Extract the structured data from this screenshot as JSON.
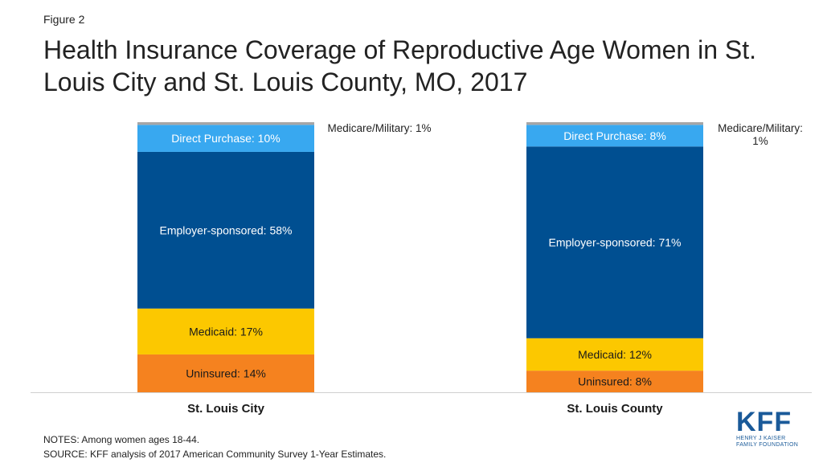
{
  "figure_label": "Figure 2",
  "notes": {
    "line1": "NOTES: Among women ages 18-44.",
    "line2": "SOURCE: KFF analysis of 2017 American Community Survey 1-Year Estimates."
  },
  "logo": {
    "mark": "KFF",
    "line1": "HENRY J KAISER",
    "line2": "FAMILY FOUNDATION"
  },
  "chart_data": {
    "type": "bar",
    "stacked": true,
    "title": "Health Insurance Coverage of Reproductive Age Women in St. Louis City and St. Louis County, MO, 2017",
    "categories": [
      "St. Louis City",
      "St. Louis County"
    ],
    "ylim": [
      0,
      100
    ],
    "grid": false,
    "series": [
      {
        "name": "Uninsured",
        "values": [
          14,
          8
        ],
        "labels": [
          "Uninsured: 14%",
          "Uninsured: 8%"
        ],
        "color": "#f5821f",
        "label_outside": false
      },
      {
        "name": "Medicaid",
        "values": [
          17,
          12
        ],
        "labels": [
          "Medicaid: 17%",
          "Medicaid: 12%"
        ],
        "color": "#fcc800",
        "label_outside": false
      },
      {
        "name": "Employer-sponsored",
        "values": [
          58,
          71
        ],
        "labels": [
          "Employer-sponsored: 58%",
          "Employer-sponsored: 71%"
        ],
        "color": "#004f91",
        "label_outside": false
      },
      {
        "name": "Direct Purchase",
        "values": [
          10,
          8
        ],
        "labels": [
          "Direct Purchase: 10%",
          "Direct Purchase: 8%"
        ],
        "color": "#38a8f0",
        "label_outside": false
      },
      {
        "name": "Medicare/Military",
        "values": [
          1,
          1
        ],
        "labels": [
          [
            "Medicare/Military:  1%"
          ],
          [
            "Medicare/Military:",
            "1%"
          ]
        ],
        "color": "#a6a6a6",
        "label_outside": true
      }
    ]
  }
}
